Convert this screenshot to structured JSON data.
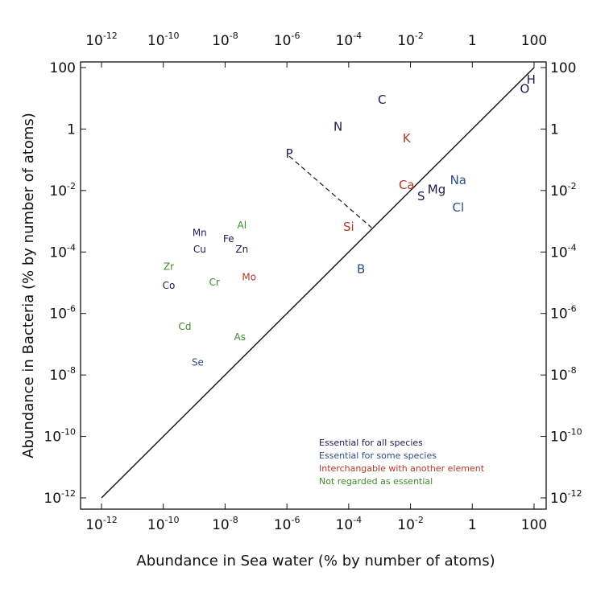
{
  "chart_data": {
    "type": "scatter",
    "xlabel": "Abundance in Sea water (% by number of atoms)",
    "ylabel": "Abundance in Bacteria (% by number of atoms)",
    "xscale": "log",
    "yscale": "log",
    "xlim": [
      1e-12,
      100
    ],
    "ylim": [
      1e-12,
      100
    ],
    "x_ticks": [
      {
        "value": 1e-12,
        "base": "10",
        "exp": "-12"
      },
      {
        "value": 1e-10,
        "base": "10",
        "exp": "-10"
      },
      {
        "value": 1e-08,
        "base": "10",
        "exp": "-8"
      },
      {
        "value": 1e-06,
        "base": "10",
        "exp": "-6"
      },
      {
        "value": 0.0001,
        "base": "10",
        "exp": "-4"
      },
      {
        "value": 0.01,
        "base": "10",
        "exp": "-2"
      },
      {
        "value": 1,
        "base": "1",
        "exp": ""
      },
      {
        "value": 100,
        "base": "100",
        "exp": ""
      }
    ],
    "y_ticks": [
      {
        "value": 1e-12,
        "base": "10",
        "exp": "-12"
      },
      {
        "value": 1e-10,
        "base": "10",
        "exp": "-10"
      },
      {
        "value": 1e-08,
        "base": "10",
        "exp": "-8"
      },
      {
        "value": 1e-06,
        "base": "10",
        "exp": "-6"
      },
      {
        "value": 0.0001,
        "base": "10",
        "exp": "-4"
      },
      {
        "value": 0.01,
        "base": "10",
        "exp": "-2"
      },
      {
        "value": 1,
        "base": "1",
        "exp": ""
      },
      {
        "value": 100,
        "base": "100",
        "exp": ""
      }
    ],
    "reference_line": {
      "from": [
        1e-12,
        1e-12
      ],
      "to": [
        100,
        100
      ],
      "style": "solid"
    },
    "annotation_line": {
      "from": [
        1.2e-06,
        0.13
      ],
      "to": [
        0.00055,
        0.00062
      ],
      "style": "dashed"
    },
    "categories": {
      "all": {
        "label": "Essential for all species",
        "color": "#1e1850"
      },
      "some": {
        "label": "Essential for some species",
        "color": "#2e4d86"
      },
      "interchangeable": {
        "label": "Interchangable with another element",
        "color": "#b23a2a"
      },
      "not": {
        "label": "Not regarded as essential",
        "color": "#3f8a2a"
      }
    },
    "points": [
      {
        "label": "H",
        "x": 80,
        "y": 40,
        "category": "all",
        "big": true
      },
      {
        "label": "O",
        "x": 50,
        "y": 20,
        "category": "all",
        "big": true
      },
      {
        "label": "C",
        "x": 0.0012,
        "y": 9,
        "category": "all",
        "big": true
      },
      {
        "label": "N",
        "x": 4.5e-05,
        "y": 1.2,
        "category": "all",
        "big": true
      },
      {
        "label": "P",
        "x": 1.2e-06,
        "y": 0.16,
        "category": "all",
        "big": true
      },
      {
        "label": "K",
        "x": 0.0075,
        "y": 0.5,
        "category": "interchangeable",
        "big": true
      },
      {
        "label": "Ca",
        "x": 0.0075,
        "y": 0.015,
        "category": "interchangeable",
        "big": true
      },
      {
        "label": "S",
        "x": 0.022,
        "y": 0.0065,
        "category": "all",
        "big": true
      },
      {
        "label": "Mg",
        "x": 0.07,
        "y": 0.011,
        "category": "all",
        "big": true
      },
      {
        "label": "Na",
        "x": 0.35,
        "y": 0.022,
        "category": "some",
        "big": true
      },
      {
        "label": "Cl",
        "x": 0.35,
        "y": 0.0028,
        "category": "some",
        "big": true
      },
      {
        "label": "Si",
        "x": 0.0001,
        "y": 0.00065,
        "category": "interchangeable",
        "big": true
      },
      {
        "label": "B",
        "x": 0.00025,
        "y": 2.8e-05,
        "category": "some",
        "big": true
      },
      {
        "label": "Mn",
        "x": 1.5e-09,
        "y": 0.00045,
        "category": "all",
        "big": false
      },
      {
        "label": "Al",
        "x": 3.5e-08,
        "y": 0.00078,
        "category": "not",
        "big": false
      },
      {
        "label": "Fe",
        "x": 1.3e-08,
        "y": 0.00028,
        "category": "all",
        "big": false
      },
      {
        "label": "Cu",
        "x": 1.5e-09,
        "y": 0.00013,
        "category": "all",
        "big": false
      },
      {
        "label": "Zn",
        "x": 3.5e-08,
        "y": 0.00013,
        "category": "all",
        "big": false
      },
      {
        "label": "Zr",
        "x": 1.5e-10,
        "y": 3.5e-05,
        "category": "not",
        "big": false
      },
      {
        "label": "Co",
        "x": 1.5e-10,
        "y": 8.5e-06,
        "category": "all",
        "big": false
      },
      {
        "label": "Cr",
        "x": 4.5e-09,
        "y": 1.1e-05,
        "category": "not",
        "big": false
      },
      {
        "label": "Mo",
        "x": 6e-08,
        "y": 1.6e-05,
        "category": "interchangeable",
        "big": false
      },
      {
        "label": "Cd",
        "x": 5e-10,
        "y": 4e-07,
        "category": "not",
        "big": false
      },
      {
        "label": "As",
        "x": 3e-08,
        "y": 1.8e-07,
        "category": "not",
        "big": false
      },
      {
        "label": "Se",
        "x": 1.3e-09,
        "y": 2.7e-08,
        "category": "some",
        "big": false
      }
    ],
    "legend": {
      "placement": "lower-right",
      "entries": [
        {
          "label": "Essential for all species",
          "category": "all"
        },
        {
          "label": "Essential for some species",
          "category": "some"
        },
        {
          "label": "Interchangable with another element",
          "category": "interchangeable"
        },
        {
          "label": "Not regarded as essential",
          "category": "not"
        }
      ]
    }
  }
}
